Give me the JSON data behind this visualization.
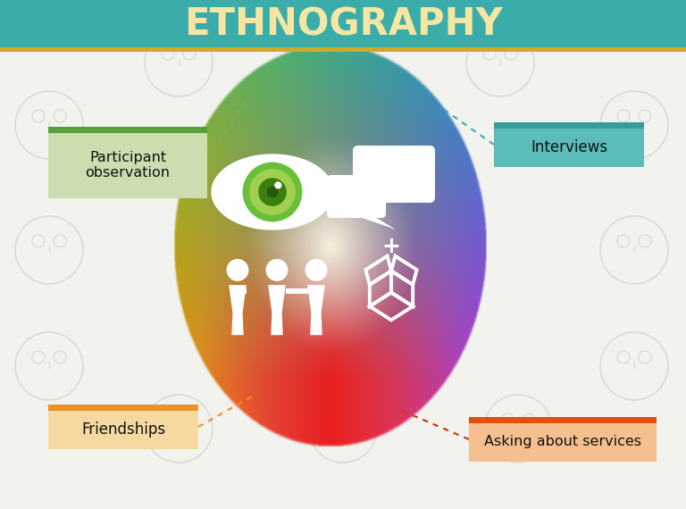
{
  "title": "ETHNOGRAPHY",
  "title_bg": "#3aacaa",
  "title_color": "#f5e6a3",
  "title_stripe_color": "#d4a820",
  "bg_color": "#f2f2ee",
  "label_tl": {
    "text": "Participant\nobservation",
    "bg": "#ccddb0",
    "border_top": "#5a9e3a",
    "border_main": "#ccddb0"
  },
  "label_tr": {
    "text": "Interviews",
    "bg": "#5bbcba",
    "border_top": "#3a9e9c",
    "border_main": "#5bbcba"
  },
  "label_bl": {
    "text": "Friendships",
    "bg": "#f5d9a0",
    "border_top": "#e8922a",
    "border_main": "#f5d9a0"
  },
  "label_br": {
    "text": "Asking about services",
    "bg": "#f5c090",
    "border_top": "#e05010",
    "border_main": "#f5c090"
  },
  "c_tl": "#6abf38",
  "c_tr": "#1a90d0",
  "c_bl": "#ff8800",
  "c_br": "#cc22cc",
  "c_bottom_red": "#e82020",
  "c_center_light": "#f8f0e0",
  "wm_color": "#d8d8d0",
  "conn_tl": "#88aa50",
  "conn_tr": "#3aacaa",
  "conn_bl": "#e8922a",
  "conn_br": "#cc3300"
}
